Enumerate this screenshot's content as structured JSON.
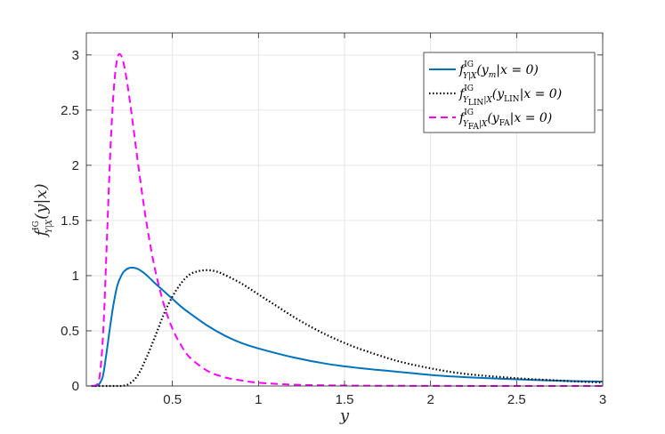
{
  "chart_data": {
    "type": "line",
    "xlabel": "y",
    "ylabel": {
      "base": "f",
      "sup": "IG",
      "sub": "Y|X",
      "arg": "(y|x)"
    },
    "xlim": [
      0,
      3
    ],
    "ylim": [
      0,
      3.2
    ],
    "xticks": [
      0.5,
      1,
      1.5,
      2,
      2.5,
      3
    ],
    "xtick_labels": [
      "0.5",
      "1",
      "1.5",
      "2",
      "2.5",
      "3"
    ],
    "yticks": [
      0,
      0.5,
      1,
      1.5,
      2,
      2.5,
      3
    ],
    "ytick_labels": [
      "0",
      "0.5",
      "1",
      "1.5",
      "2",
      "2.5",
      "3"
    ],
    "grid": true,
    "legend_position": "top-right",
    "series": [
      {
        "legend": {
          "base": "f",
          "sup": "IG",
          "sub": "Y|X",
          "arg": "(y",
          "argsub": "m",
          "tail": "|x = 0)"
        },
        "color": "#0072bd",
        "style": "solid",
        "x": [
          0.03,
          0.05,
          0.07,
          0.09,
          0.1,
          0.12,
          0.14,
          0.16,
          0.18,
          0.2,
          0.22,
          0.25,
          0.28,
          0.3,
          0.33,
          0.36,
          0.4,
          0.45,
          0.5,
          0.55,
          0.6,
          0.7,
          0.8,
          0.9,
          1.0,
          1.2,
          1.4,
          1.6,
          1.8,
          2.0,
          2.2,
          2.5,
          2.8,
          3.0
        ],
        "y": [
          0.0,
          0.0,
          0.01,
          0.06,
          0.12,
          0.33,
          0.56,
          0.76,
          0.91,
          0.99,
          1.04,
          1.07,
          1.07,
          1.06,
          1.03,
          0.99,
          0.93,
          0.86,
          0.79,
          0.72,
          0.66,
          0.55,
          0.46,
          0.39,
          0.34,
          0.26,
          0.2,
          0.16,
          0.13,
          0.1,
          0.08,
          0.06,
          0.045,
          0.04
        ]
      },
      {
        "legend": {
          "base": "f",
          "sup": "IG",
          "sub": "Y",
          "subsub": "LIN",
          "subtail": "|X",
          "arg": "(y",
          "argsub": "LIN",
          "tail": "|x = 0)"
        },
        "color": "#000000",
        "style": "dotted",
        "x": [
          0.03,
          0.1,
          0.15,
          0.2,
          0.25,
          0.3,
          0.35,
          0.4,
          0.45,
          0.5,
          0.55,
          0.6,
          0.65,
          0.7,
          0.75,
          0.8,
          0.9,
          1.0,
          1.1,
          1.2,
          1.3,
          1.4,
          1.5,
          1.6,
          1.8,
          2.0,
          2.2,
          2.5,
          2.8,
          3.0
        ],
        "y": [
          0.0,
          0.0,
          0.0,
          0.0,
          0.02,
          0.1,
          0.26,
          0.45,
          0.65,
          0.81,
          0.93,
          1.01,
          1.04,
          1.05,
          1.04,
          1.01,
          0.93,
          0.83,
          0.73,
          0.63,
          0.54,
          0.46,
          0.39,
          0.33,
          0.23,
          0.16,
          0.11,
          0.07,
          0.045,
          0.03
        ]
      },
      {
        "legend": {
          "base": "f",
          "sup": "IG",
          "sub": "Y",
          "subsub": "FA",
          "subtail": "|X",
          "arg": "(y",
          "argsub": "FA",
          "tail": "|x = 0)"
        },
        "color": "#ff00ff",
        "style": "dashed",
        "x": [
          0.03,
          0.06,
          0.08,
          0.1,
          0.12,
          0.14,
          0.16,
          0.18,
          0.2,
          0.22,
          0.24,
          0.26,
          0.28,
          0.3,
          0.33,
          0.36,
          0.4,
          0.45,
          0.5,
          0.55,
          0.6,
          0.7,
          0.8,
          0.9,
          1.0,
          1.2,
          1.5,
          2.0,
          2.5,
          3.0
        ],
        "y": [
          0.0,
          0.01,
          0.12,
          0.55,
          1.35,
          2.15,
          2.7,
          2.97,
          3.0,
          2.9,
          2.72,
          2.5,
          2.26,
          2.02,
          1.68,
          1.38,
          1.05,
          0.74,
          0.52,
          0.37,
          0.26,
          0.14,
          0.08,
          0.05,
          0.03,
          0.012,
          0.004,
          0.001,
          0.0,
          0.0
        ]
      }
    ]
  }
}
